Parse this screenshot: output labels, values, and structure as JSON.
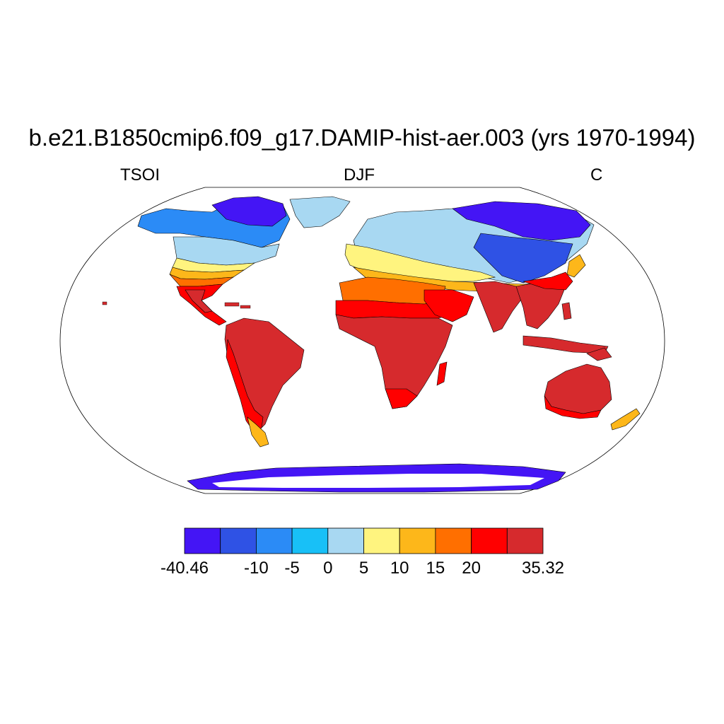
{
  "figure": {
    "title": "b.e21.B1850cmip6.f09_g17.DAMIP-hist-aer.003 (yrs 1970-1994)",
    "variable": "TSOI",
    "season": "DJF",
    "units": "C"
  },
  "map": {
    "projection": "Robinson",
    "note_regions": [
      {
        "name": "greenland-arctic-canada",
        "color": "#4415F5"
      },
      {
        "name": "north-america-boreal",
        "color": "#2B8BF6"
      },
      {
        "name": "north-america-temperate",
        "color": "#A8D8F2"
      },
      {
        "name": "us-south",
        "color": "#FDB71A"
      },
      {
        "name": "mexico-central-america",
        "color": "#FF0000"
      },
      {
        "name": "south-america",
        "color": "#D62A2D"
      },
      {
        "name": "europe",
        "color": "#FFF47F"
      },
      {
        "name": "siberia",
        "color": "#4415F5"
      },
      {
        "name": "central-asia",
        "color": "#A8D8F2"
      },
      {
        "name": "north-africa",
        "color": "#FF6F00"
      },
      {
        "name": "africa",
        "color": "#D62A2D"
      },
      {
        "name": "india-se-asia",
        "color": "#D62A2D"
      },
      {
        "name": "australia",
        "color": "#D62A2D"
      },
      {
        "name": "antarctica",
        "color": "#4415F5"
      }
    ]
  },
  "colorbar": {
    "colors": [
      "#4415F5",
      "#2F52E5",
      "#2B8BF6",
      "#18C0F7",
      "#A8D8F2",
      "#FFF47F",
      "#FDB71A",
      "#FF6F00",
      "#FF0000",
      "#D62A2D"
    ],
    "tick_labels": [
      "-40.46",
      "-10",
      "-5",
      "0",
      "5",
      "10",
      "15",
      "20",
      "35.32"
    ],
    "tick_boundaries": [
      0,
      2,
      3,
      4,
      5,
      6,
      7,
      8,
      10
    ]
  }
}
